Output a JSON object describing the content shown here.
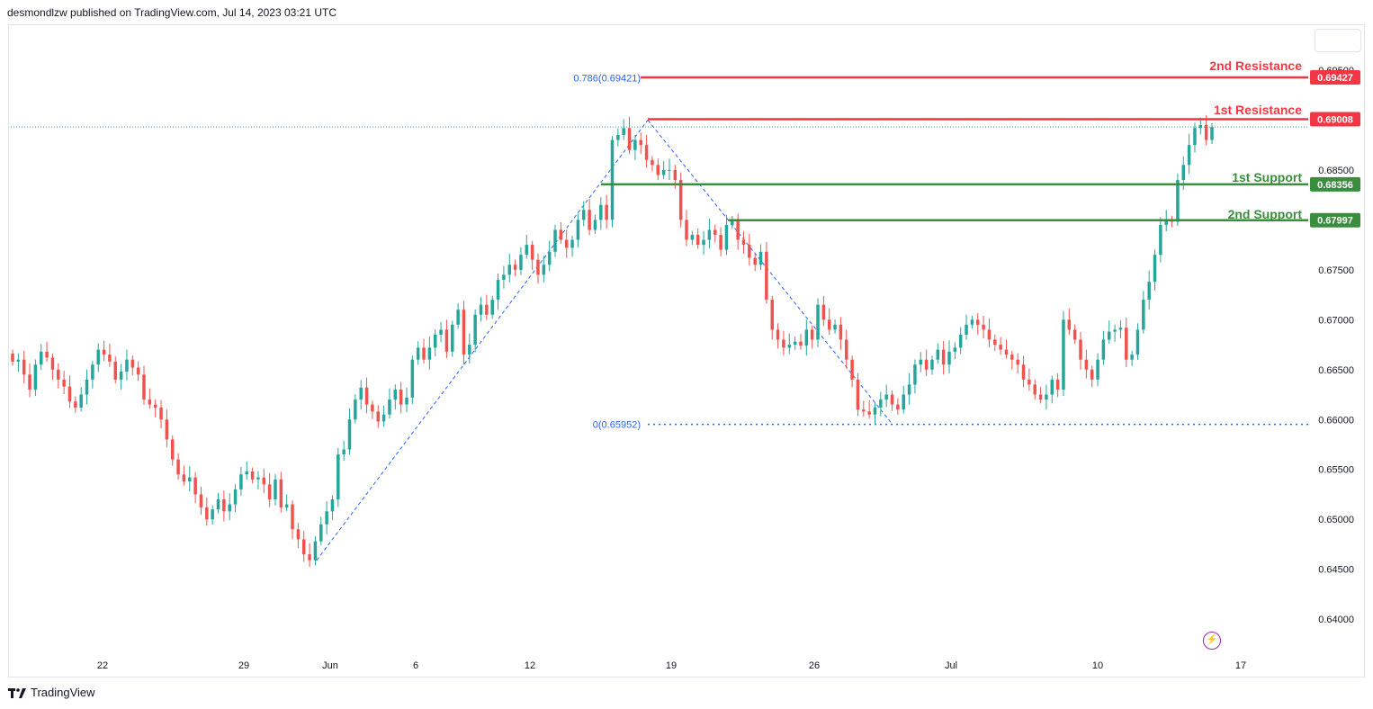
{
  "header": {
    "published_text": "desmondlzw published on TradingView.com, Jul 14, 2023 03:21 UTC"
  },
  "footer": {
    "brand": "TradingView",
    "icon": "tradingview-logo-icon"
  },
  "controls": {
    "flash_icon": "lightning-icon"
  },
  "colors": {
    "up": "#26a69a",
    "down": "#ef5350",
    "resistance": "#f23645",
    "support": "#388e3c",
    "fib": "#2962ff",
    "axis_text": "#131722"
  },
  "chart_data": {
    "type": "candlestick",
    "title": "",
    "ylim": [
      0.6365,
      0.6995
    ],
    "y_ticks": [
      "0.69500",
      "0.68500",
      "0.67500",
      "0.67000",
      "0.66500",
      "0.66000",
      "0.65500",
      "0.65000",
      "0.64500",
      "0.64000"
    ],
    "x_ticks": [
      "22",
      "29",
      "Jun",
      "6",
      "12",
      "19",
      "26",
      "Jul",
      "10",
      "17"
    ],
    "levels": [
      {
        "name": "2nd Resistance",
        "value": 0.69427,
        "label": "0.69427",
        "kind": "resistance"
      },
      {
        "name": "1st Resistance",
        "value": 0.69008,
        "label": "0.69008",
        "kind": "resistance"
      },
      {
        "name": "1st Support",
        "value": 0.68356,
        "label": "0.68356",
        "kind": "support"
      },
      {
        "name": "2nd Support",
        "value": 0.67997,
        "label": "0.67997",
        "kind": "support"
      }
    ],
    "fib": {
      "level_0786_label": "0.786(0.69421)",
      "level_0786_value": 0.69421,
      "level_0_label": "0(0.65952)",
      "level_0_value": 0.65952,
      "swing_points": [
        [
          0.6459,
          0.69
        ],
        [
          0.69,
          0.6595
        ]
      ]
    },
    "price_line_value": 0.6893,
    "closes": [
      0.6658,
      0.666,
      0.6645,
      0.663,
      0.6655,
      0.6668,
      0.6662,
      0.665,
      0.664,
      0.6633,
      0.6618,
      0.6612,
      0.6625,
      0.664,
      0.6655,
      0.667,
      0.6665,
      0.6658,
      0.664,
      0.6648,
      0.666,
      0.6652,
      0.6645,
      0.662,
      0.6615,
      0.6612,
      0.66,
      0.658,
      0.656,
      0.6545,
      0.6538,
      0.6542,
      0.6525,
      0.6512,
      0.65,
      0.651,
      0.652,
      0.6508,
      0.6515,
      0.653,
      0.6545,
      0.6548,
      0.654,
      0.6542,
      0.6535,
      0.652,
      0.654,
      0.6512,
      0.6515,
      0.649,
      0.648,
      0.6465,
      0.6459,
      0.6478,
      0.6495,
      0.6508,
      0.652,
      0.6565,
      0.657,
      0.66,
      0.662,
      0.6632,
      0.6615,
      0.6608,
      0.6598,
      0.6605,
      0.662,
      0.663,
      0.6615,
      0.6622,
      0.666,
      0.6672,
      0.666,
      0.6672,
      0.6685,
      0.669,
      0.6668,
      0.6695,
      0.671,
      0.6665,
      0.6675,
      0.6705,
      0.6715,
      0.6705,
      0.672,
      0.674,
      0.6745,
      0.6755,
      0.675,
      0.6765,
      0.6775,
      0.676,
      0.6745,
      0.6755,
      0.6768,
      0.679,
      0.678,
      0.6772,
      0.678,
      0.68,
      0.681,
      0.679,
      0.68,
      0.6815,
      0.68,
      0.688,
      0.6885,
      0.6892,
      0.687,
      0.688,
      0.6875,
      0.686,
      0.6855,
      0.6845,
      0.685,
      0.685,
      0.684,
      0.68,
      0.678,
      0.6785,
      0.6775,
      0.678,
      0.679,
      0.6785,
      0.677,
      0.6795,
      0.68,
      0.678,
      0.6775,
      0.6762,
      0.6755,
      0.6768,
      0.672,
      0.669,
      0.668,
      0.6672,
      0.6675,
      0.6678,
      0.6674,
      0.669,
      0.668,
      0.6715,
      0.67,
      0.669,
      0.6695,
      0.668,
      0.666,
      0.664,
      0.661,
      0.6608,
      0.6605,
      0.6612,
      0.662,
      0.6625,
      0.6615,
      0.661,
      0.6625,
      0.6635,
      0.6655,
      0.666,
      0.665,
      0.666,
      0.667,
      0.6655,
      0.6668,
      0.6672,
      0.6685,
      0.6695,
      0.67,
      0.6695,
      0.669,
      0.668,
      0.6675,
      0.667,
      0.6665,
      0.666,
      0.6655,
      0.664,
      0.6635,
      0.6625,
      0.662,
      0.6625,
      0.664,
      0.663,
      0.67,
      0.669,
      0.668,
      0.666,
      0.665,
      0.664,
      0.666,
      0.668,
      0.6688,
      0.669,
      0.6692,
      0.666,
      0.6665,
      0.669,
      0.672,
      0.6738,
      0.6765,
      0.6795,
      0.68,
      0.6798,
      0.684,
      0.6855,
      0.6875,
      0.6892,
      0.6895,
      0.688,
      0.6893
    ]
  }
}
